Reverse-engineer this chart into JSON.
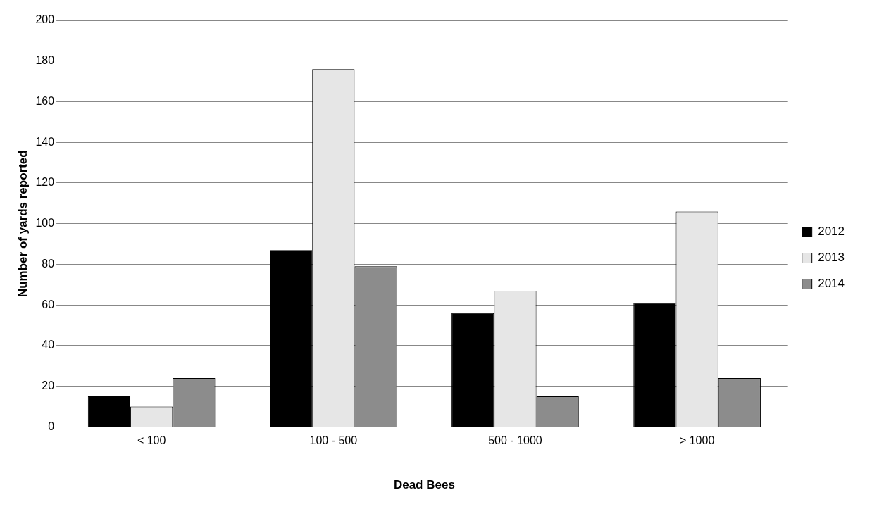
{
  "chart_data": {
    "type": "bar",
    "xlabel": "Dead Bees",
    "ylabel": "Number of yards reported",
    "categories": [
      "< 100",
      "100 - 500",
      "500 - 1000",
      "> 1000"
    ],
    "series": [
      {
        "name": "2012",
        "color": "#000000",
        "values": [
          15,
          87,
          56,
          61
        ]
      },
      {
        "name": "2013",
        "color": "#e6e6e6",
        "values": [
          10,
          176,
          67,
          106
        ]
      },
      {
        "name": "2014",
        "color": "#8c8c8c",
        "values": [
          24,
          79,
          15,
          24
        ]
      }
    ],
    "ylim": [
      0,
      200
    ],
    "yticks": [
      0,
      20,
      40,
      60,
      80,
      100,
      120,
      140,
      160,
      180,
      200
    ],
    "grid": "y",
    "legend": "right"
  }
}
